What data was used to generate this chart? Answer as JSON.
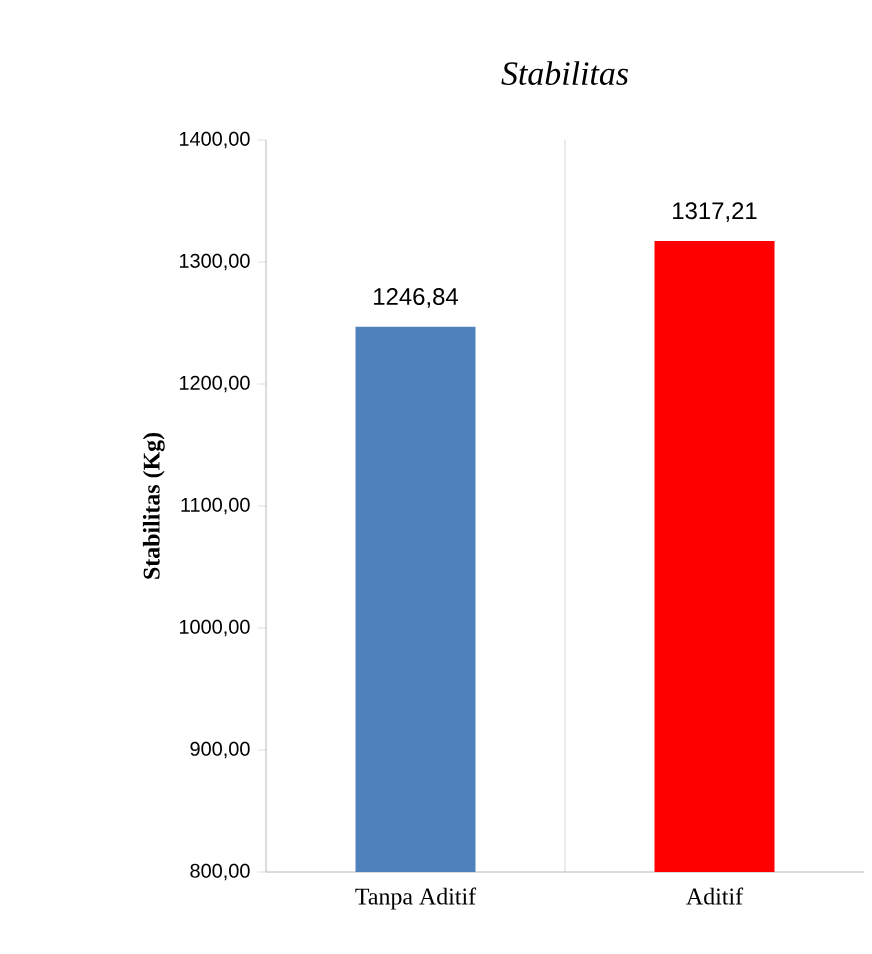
{
  "chart_data": {
    "type": "bar",
    "title": "Stabilitas",
    "ylabel": "Stabilitas (Kg)",
    "categories": [
      "Tanpa Aditif",
      "Aditif"
    ],
    "values": [
      1246.84,
      1317.21
    ],
    "colors": [
      "#4f81bd",
      "#ff0000"
    ],
    "value_labels": [
      "1246,84",
      "1317,21"
    ],
    "ylim": [
      800,
      1400
    ],
    "yticks": [
      {
        "value": 800,
        "label": "800,00"
      },
      {
        "value": 900,
        "label": "900,00"
      },
      {
        "value": 1000,
        "label": "1000,00"
      },
      {
        "value": 1100,
        "label": "1100,00"
      },
      {
        "value": 1200,
        "label": "1200,00"
      },
      {
        "value": 1300,
        "label": "1300,00"
      },
      {
        "value": 1400,
        "label": "1400,00"
      }
    ],
    "grid": "x"
  }
}
